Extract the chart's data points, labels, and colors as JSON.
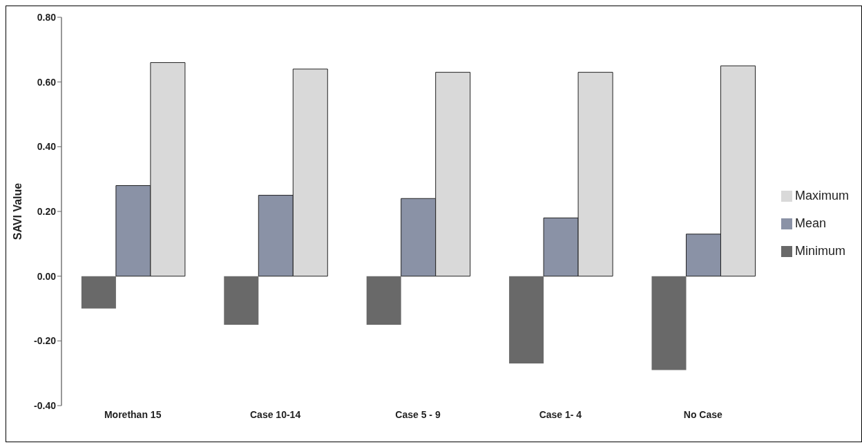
{
  "chart_data": {
    "type": "bar",
    "ylabel": "SAVI Value",
    "categories": [
      "Morethan 15",
      "Case 10-14",
      "Case 5 - 9",
      "Case 1- 4",
      "No Case"
    ],
    "series": [
      {
        "name": "Minimum",
        "color": "#696969",
        "values": [
          -0.1,
          -0.15,
          -0.15,
          -0.27,
          -0.29
        ]
      },
      {
        "name": "Mean",
        "color": "#8a92a6",
        "values": [
          0.28,
          0.25,
          0.24,
          0.18,
          0.13
        ]
      },
      {
        "name": "Maximum",
        "color": "#d9d9d9",
        "values": [
          0.66,
          0.64,
          0.63,
          0.63,
          0.65
        ]
      }
    ],
    "ylim": [
      -0.4,
      0.8
    ],
    "yticks": [
      {
        "value": -0.4,
        "label": "-0.40"
      },
      {
        "value": -0.2,
        "label": "-0.20"
      },
      {
        "value": 0,
        "label": "0.00"
      },
      {
        "value": 0.2,
        "label": "0.20"
      },
      {
        "value": 0.4,
        "label": "0.40"
      },
      {
        "value": 0.6,
        "label": "0.60"
      },
      {
        "value": 0.8,
        "label": "0.80"
      }
    ],
    "grid": false,
    "legend": "right"
  }
}
